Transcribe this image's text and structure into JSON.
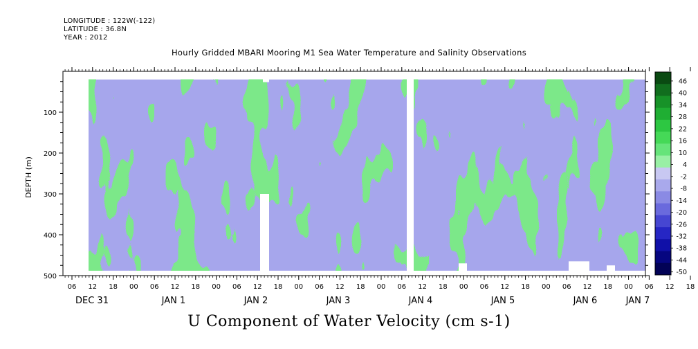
{
  "header": {
    "longitude": "LONGITUDE : 122W(-122)",
    "latitude": "LATITUDE : 36.8N",
    "year": "YEAR : 2012"
  },
  "chart_data": {
    "type": "heatmap",
    "title": "Hourly Gridded MBARI Mooring M1 Sea Water Temperature and Salinity Observations",
    "xlabel": "U Component of Water Velocity (cm s-1)",
    "ylabel": "DEPTH (m)",
    "ylim": [
      500,
      0
    ],
    "y_ticks": [
      100,
      200,
      300,
      400,
      500
    ],
    "hour_ticks": [
      "06",
      "12",
      "18",
      "00",
      "06",
      "12",
      "18",
      "00",
      "06",
      "12",
      "18",
      "00",
      "06",
      "12",
      "18",
      "00",
      "06",
      "12",
      "18",
      "00",
      "06",
      "12",
      "18",
      "00",
      "06",
      "12",
      "18",
      "00",
      "06",
      "12",
      "18",
      "00"
    ],
    "date_labels": [
      "DEC 31",
      "JAN 1",
      "JAN 2",
      "JAN 3",
      "JAN 4",
      "JAN 5",
      "JAN 6",
      "JAN 7"
    ],
    "colorbar": {
      "levels": [
        46,
        40,
        34,
        28,
        22,
        16,
        10,
        4,
        -2,
        -8,
        -14,
        -20,
        -26,
        -32,
        -38,
        -44,
        -50
      ],
      "colors": [
        "#0a4a12",
        "#116e1e",
        "#179228",
        "#1fae33",
        "#2dc742",
        "#45d957",
        "#66e47a",
        "#99f0a5",
        "#c8c8f2",
        "#a9a9ec",
        "#8a8ae4",
        "#6a6add",
        "#4646d2",
        "#2626c4",
        "#1010a8",
        "#060680",
        "#020256"
      ]
    },
    "plot_colors": {
      "positive": "#7be889",
      "negative": "#a6a6ec"
    }
  }
}
